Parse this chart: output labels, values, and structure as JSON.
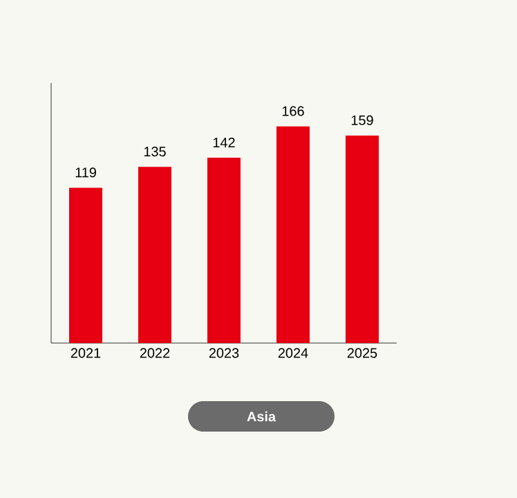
{
  "chart_data": {
    "type": "bar",
    "categories": [
      "2021",
      "2022",
      "2023",
      "2024",
      "2025"
    ],
    "values": [
      119,
      135,
      142,
      166,
      159
    ],
    "color": "#e60012",
    "data_labels": true,
    "annotations": [
      "Asia"
    ]
  }
}
